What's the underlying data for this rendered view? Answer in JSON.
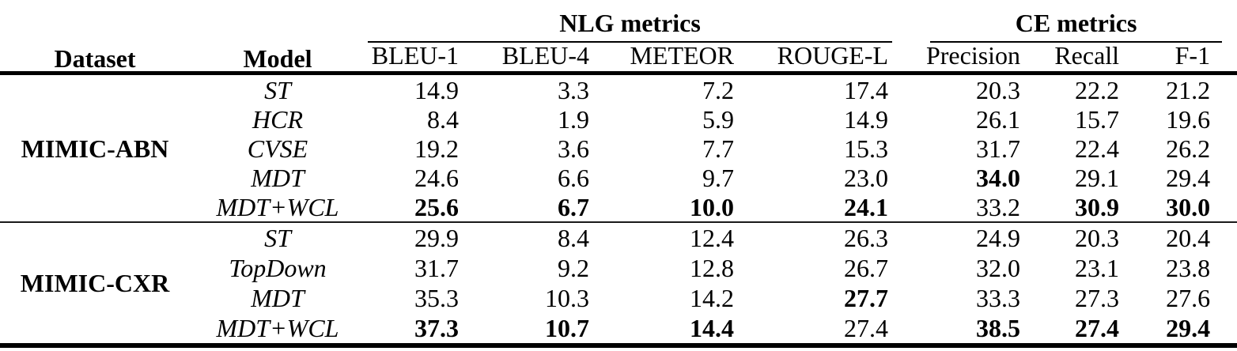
{
  "table": {
    "header": {
      "dataset": "Dataset",
      "model": "Model",
      "nlg_group": "NLG metrics",
      "ce_group": "CE metrics",
      "metrics": [
        "BLEU-1",
        "BLEU-4",
        "METEOR",
        "ROUGE-L",
        "Precision",
        "Recall",
        "F-1"
      ]
    },
    "sections": [
      {
        "dataset": "MIMIC-ABN",
        "rows": [
          {
            "model": "ST",
            "values": [
              "14.9",
              "3.3",
              "7.2",
              "17.4",
              "20.3",
              "22.2",
              "21.2"
            ],
            "bold": [
              false,
              false,
              false,
              false,
              false,
              false,
              false
            ]
          },
          {
            "model": "HCR",
            "values": [
              "8.4",
              "1.9",
              "5.9",
              "14.9",
              "26.1",
              "15.7",
              "19.6"
            ],
            "bold": [
              false,
              false,
              false,
              false,
              false,
              false,
              false
            ]
          },
          {
            "model": "CVSE",
            "values": [
              "19.2",
              "3.6",
              "7.7",
              "15.3",
              "31.7",
              "22.4",
              "26.2"
            ],
            "bold": [
              false,
              false,
              false,
              false,
              false,
              false,
              false
            ]
          },
          {
            "model": "MDT",
            "values": [
              "24.6",
              "6.6",
              "9.7",
              "23.0",
              "34.0",
              "29.1",
              "29.4"
            ],
            "bold": [
              false,
              false,
              false,
              false,
              true,
              false,
              false
            ]
          },
          {
            "model": "MDT+WCL",
            "values": [
              "25.6",
              "6.7",
              "10.0",
              "24.1",
              "33.2",
              "30.9",
              "30.0"
            ],
            "bold": [
              true,
              true,
              true,
              true,
              false,
              true,
              true
            ]
          }
        ]
      },
      {
        "dataset": "MIMIC-CXR",
        "rows": [
          {
            "model": "ST",
            "values": [
              "29.9",
              "8.4",
              "12.4",
              "26.3",
              "24.9",
              "20.3",
              "20.4"
            ],
            "bold": [
              false,
              false,
              false,
              false,
              false,
              false,
              false
            ]
          },
          {
            "model": "TopDown",
            "values": [
              "31.7",
              "9.2",
              "12.8",
              "26.7",
              "32.0",
              "23.1",
              "23.8"
            ],
            "bold": [
              false,
              false,
              false,
              false,
              false,
              false,
              false
            ]
          },
          {
            "model": "MDT",
            "values": [
              "35.3",
              "10.3",
              "14.2",
              "27.7",
              "33.3",
              "27.3",
              "27.6"
            ],
            "bold": [
              false,
              false,
              false,
              true,
              false,
              false,
              false
            ]
          },
          {
            "model": "MDT+WCL",
            "values": [
              "37.3",
              "10.7",
              "14.4",
              "27.4",
              "38.5",
              "27.4",
              "29.4"
            ],
            "bold": [
              true,
              true,
              true,
              false,
              true,
              true,
              true
            ]
          }
        ]
      }
    ]
  }
}
